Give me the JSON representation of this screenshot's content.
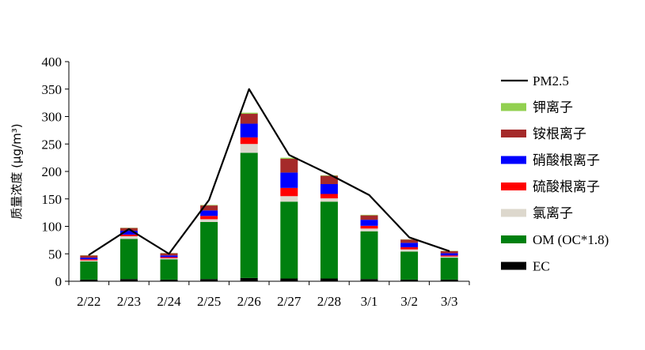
{
  "chart_data": {
    "type": "bar",
    "stacked": true,
    "categories": [
      "2/22",
      "2/23",
      "2/24",
      "2/25",
      "2/26",
      "2/27",
      "2/28",
      "3/1",
      "3/2",
      "3/3"
    ],
    "ylabel": "质量浓度 (μg/m³)",
    "ylim": [
      0,
      400
    ],
    "yticks": [
      0,
      50,
      100,
      150,
      200,
      250,
      300,
      350,
      400
    ],
    "grid": false,
    "legend_position": "right",
    "series": [
      {
        "name": "EC",
        "color": "#000000",
        "values": [
          3,
          4,
          3,
          4,
          6,
          5,
          5,
          4,
          3,
          3
        ]
      },
      {
        "name": "OM (OC*1.8)",
        "color": "#00800f",
        "values": [
          33,
          73,
          37,
          104,
          228,
          140,
          140,
          87,
          51,
          40
        ]
      },
      {
        "name": "氯离子",
        "color": "#ddd8cd",
        "values": [
          2,
          5,
          2,
          5,
          16,
          10,
          6,
          5,
          4,
          2
        ]
      },
      {
        "name": "硫酸根离子",
        "color": "#ff0000",
        "values": [
          2,
          3,
          2,
          6,
          12,
          15,
          8,
          5,
          4,
          2
        ]
      },
      {
        "name": "硝酸根离子",
        "color": "#0000ff",
        "values": [
          3,
          7,
          3,
          10,
          25,
          28,
          18,
          11,
          8,
          4
        ]
      },
      {
        "name": "铵根离子",
        "color": "#a52a2a",
        "values": [
          4,
          5,
          4,
          9,
          18,
          25,
          15,
          8,
          6,
          4
        ]
      },
      {
        "name": "钾离子",
        "color": "#92d050",
        "values": [
          0.5,
          0.5,
          0.5,
          1,
          2,
          2,
          1,
          1,
          0.5,
          0.5
        ]
      }
    ],
    "line": {
      "name": "PM2.5",
      "color": "#000000",
      "values": [
        48,
        95,
        50,
        148,
        350,
        230,
        195,
        157,
        80,
        55
      ]
    },
    "legend_order": [
      "PM2.5",
      "钾离子",
      "铵根离子",
      "硝酸根离子",
      "硫酸根离子",
      "氯离子",
      "OM (OC*1.8)",
      "EC"
    ]
  }
}
